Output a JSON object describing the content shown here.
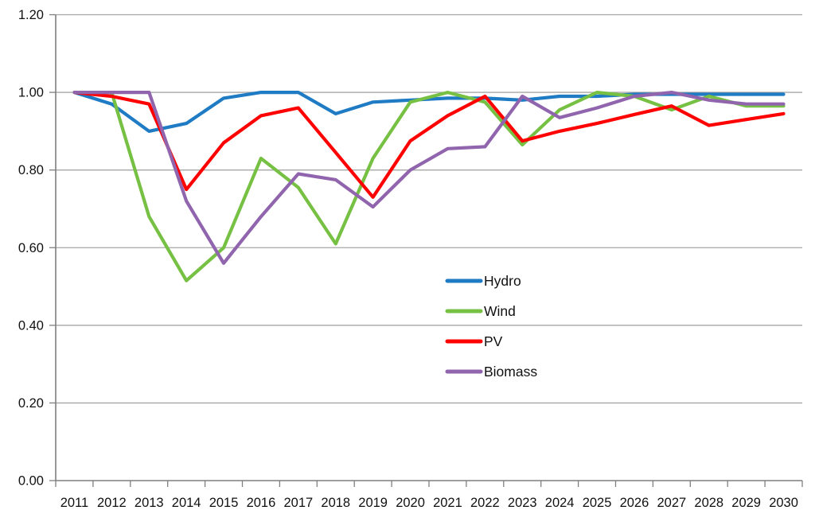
{
  "chart_data": {
    "type": "line",
    "title": "",
    "xlabel": "",
    "ylabel": "",
    "x": [
      "2011",
      "2012",
      "2013",
      "2014",
      "2015",
      "2016",
      "2017",
      "2018",
      "2019",
      "2020",
      "2021",
      "2022",
      "2023",
      "2024",
      "2025",
      "2026",
      "2027",
      "2028",
      "2029",
      "2030"
    ],
    "ylim": [
      0,
      1.2
    ],
    "ytick_step": 0.2,
    "ytick_labels": [
      "0.00",
      "0.20",
      "0.40",
      "0.60",
      "0.80",
      "1.00",
      "1.20"
    ],
    "grid": true,
    "legend_position": "inside-center-right",
    "series": [
      {
        "name": "Hydro",
        "color": "#1E7BC4",
        "values": [
          1.0,
          0.97,
          0.9,
          0.92,
          0.985,
          1.0,
          1.0,
          0.945,
          0.975,
          0.98,
          0.985,
          0.985,
          0.98,
          0.99,
          0.99,
          0.995,
          0.995,
          0.995,
          0.995,
          0.995
        ]
      },
      {
        "name": "Wind",
        "color": "#76C043",
        "values": [
          1.0,
          1.0,
          0.68,
          0.515,
          0.6,
          0.83,
          0.755,
          0.61,
          0.83,
          0.975,
          1.0,
          0.975,
          0.865,
          0.955,
          1.0,
          0.99,
          0.955,
          0.99,
          0.965,
          0.965
        ]
      },
      {
        "name": "PV",
        "color": "#FE0000",
        "values": [
          1.0,
          0.99,
          0.97,
          0.75,
          0.87,
          0.94,
          0.96,
          0.845,
          0.73,
          0.875,
          0.94,
          0.99,
          0.875,
          0.9,
          0.92,
          0.943,
          0.965,
          0.915,
          0.93,
          0.945
        ]
      },
      {
        "name": "Biomass",
        "color": "#9065AE",
        "values": [
          1.0,
          1.0,
          1.0,
          0.72,
          0.56,
          0.68,
          0.79,
          0.775,
          0.705,
          0.8,
          0.855,
          0.86,
          0.99,
          0.935,
          0.96,
          0.99,
          1.0,
          0.98,
          0.97,
          0.97
        ]
      }
    ],
    "colors": {
      "axis": "#7F7F7F",
      "gridline": "#A6A6A6",
      "text": "#111111",
      "background": "#FFFFFF"
    }
  }
}
